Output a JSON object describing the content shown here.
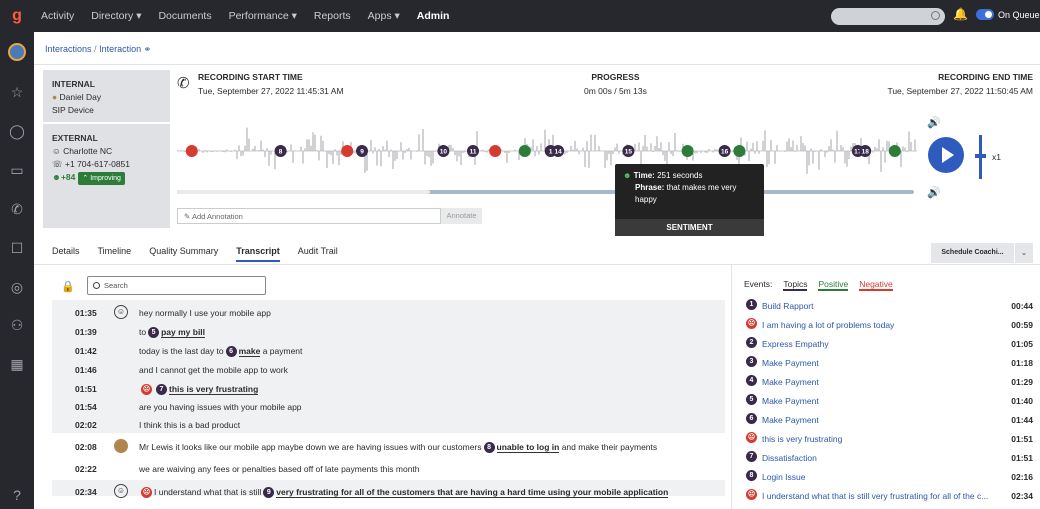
{
  "nav": {
    "items": [
      "Activity",
      "Directory ▾",
      "Documents",
      "Performance ▾",
      "Reports",
      "Apps ▾",
      "Admin"
    ],
    "active": "Admin",
    "on_queue": "On Queue"
  },
  "breadcrumb": {
    "interactions": "Interactions",
    "separator": "/",
    "interaction": "Interaction"
  },
  "internal": {
    "heading": "INTERNAL",
    "name": "Daniel Day",
    "device": "SIP Device"
  },
  "external": {
    "heading": "EXTERNAL",
    "location": "Charlotte NC",
    "phone": "+1 704-617-0851",
    "score": "+84",
    "trend": "Improving"
  },
  "recording": {
    "start_label": "RECORDING START TIME",
    "start": "Tue, September 27, 2022 11:45:31 AM",
    "progress_label": "PROGRESS",
    "progress": "0m 00s / 5m 13s",
    "end_label": "RECORDING END TIME",
    "end": "Tue, September 27, 2022 11:50:45 AM",
    "speed": "x1",
    "played_fraction": 0.0
  },
  "annotation": {
    "placeholder": "Add Annotation",
    "button": "Annotate"
  },
  "tooltip": {
    "time_label": "Time:",
    "time": "251 seconds",
    "phrase_label": "Phrase:",
    "phrase": "that makes me very happy",
    "footer": "SENTIMENT"
  },
  "tabs": [
    "Details",
    "Timeline",
    "Quality Summary",
    "Transcript",
    "Audit Trail"
  ],
  "active_tab": "Transcript",
  "schedule_button": "Schedule Coachi...",
  "search": {
    "placeholder": "Search"
  },
  "transcript": [
    {
      "time": "01:35",
      "pre": "hey normally I use your mobile app",
      "badge": "",
      "kw": "",
      "post": ""
    },
    {
      "time": "01:39",
      "pre": "to",
      "badge": "5",
      "kw": "pay my bill",
      "post": ""
    },
    {
      "time": "01:42",
      "pre": "today is the last day to",
      "badge": "6",
      "kw": "make",
      "post": "a payment"
    },
    {
      "time": "01:46",
      "pre": "and I cannot get the mobile app to work",
      "badge": "",
      "kw": "",
      "post": ""
    },
    {
      "time": "01:51",
      "pre": "",
      "badge": "7",
      "kw": "this is very frustrating",
      "post": ""
    },
    {
      "time": "01:54",
      "pre": "are you having issues with your mobile app",
      "badge": "",
      "kw": "",
      "post": ""
    },
    {
      "time": "02:02",
      "pre": "I think this is a bad product",
      "badge": "",
      "kw": "",
      "post": ""
    },
    {
      "time": "02:08",
      "pre": "Mr Lewis it looks like our mobile app maybe down we are having issues with our customers",
      "badge": "8",
      "kw": "unable to log in",
      "post": "and make their payments"
    },
    {
      "time": "02:22",
      "pre": "we are waiving any fees or penalties based off of late payments this month",
      "badge": "",
      "kw": "",
      "post": ""
    },
    {
      "time": "02:34",
      "pre": "I understand what that is still",
      "badge": "9",
      "kw": "very frustrating for all of the customers that are having a hard time using your mobile application",
      "post": ""
    }
  ],
  "events": {
    "label": "Events:",
    "filters": [
      "Topics",
      "Positive",
      "Negative"
    ],
    "items": [
      {
        "badge": "1",
        "label": "Build Rapport",
        "time": "00:44",
        "type": "topic"
      },
      {
        "badge": "",
        "label": "I am having a lot of problems today",
        "time": "00:59",
        "type": "negative"
      },
      {
        "badge": "2",
        "label": "Express Empathy",
        "time": "01:05",
        "type": "topic"
      },
      {
        "badge": "3",
        "label": "Make Payment",
        "time": "01:18",
        "type": "topic"
      },
      {
        "badge": "4",
        "label": "Make Payment",
        "time": "01:29",
        "type": "topic"
      },
      {
        "badge": "5",
        "label": "Make Payment",
        "time": "01:40",
        "type": "topic"
      },
      {
        "badge": "6",
        "label": "Make Payment",
        "time": "01:44",
        "type": "topic"
      },
      {
        "badge": "",
        "label": "this is very frustrating",
        "time": "01:51",
        "type": "negative"
      },
      {
        "badge": "7",
        "label": "Dissatisfaction",
        "time": "01:51",
        "type": "topic"
      },
      {
        "badge": "8",
        "label": "Login Issue",
        "time": "02:16",
        "type": "topic"
      },
      {
        "badge": "",
        "label": "I understand what that is still very frustrating for all of the c...",
        "time": "02:34",
        "type": "negative"
      }
    ]
  },
  "markers": [
    {
      "label": "",
      "type": "negative",
      "pos": 0.02
    },
    {
      "label": "8",
      "type": "topic",
      "pos": 0.14
    },
    {
      "label": "",
      "type": "negative",
      "pos": 0.23
    },
    {
      "label": "9",
      "type": "topic",
      "pos": 0.25
    },
    {
      "label": "10",
      "type": "topic",
      "pos": 0.36
    },
    {
      "label": "11",
      "type": "topic",
      "pos": 0.4
    },
    {
      "label": "",
      "type": "negative",
      "pos": 0.43
    },
    {
      "label": "",
      "type": "positive",
      "pos": 0.47
    },
    {
      "label": "1",
      "type": "topic",
      "pos": 0.505
    },
    {
      "label": "14",
      "type": "topic",
      "pos": 0.515
    },
    {
      "label": "15",
      "type": "topic",
      "pos": 0.61
    },
    {
      "label": "",
      "type": "positive",
      "pos": 0.69
    },
    {
      "label": "16",
      "type": "topic",
      "pos": 0.74
    },
    {
      "label": "",
      "type": "positive",
      "pos": 0.76
    },
    {
      "label": "17",
      "type": "topic",
      "pos": 0.92
    },
    {
      "label": "18",
      "type": "topic",
      "pos": 0.93
    },
    {
      "label": "",
      "type": "positive",
      "pos": 0.97
    }
  ],
  "colors": {
    "accent": "#2f5bbf",
    "topic": "#3a2a4a",
    "negative": "#d63b2f",
    "positive": "#2d7c3a"
  }
}
